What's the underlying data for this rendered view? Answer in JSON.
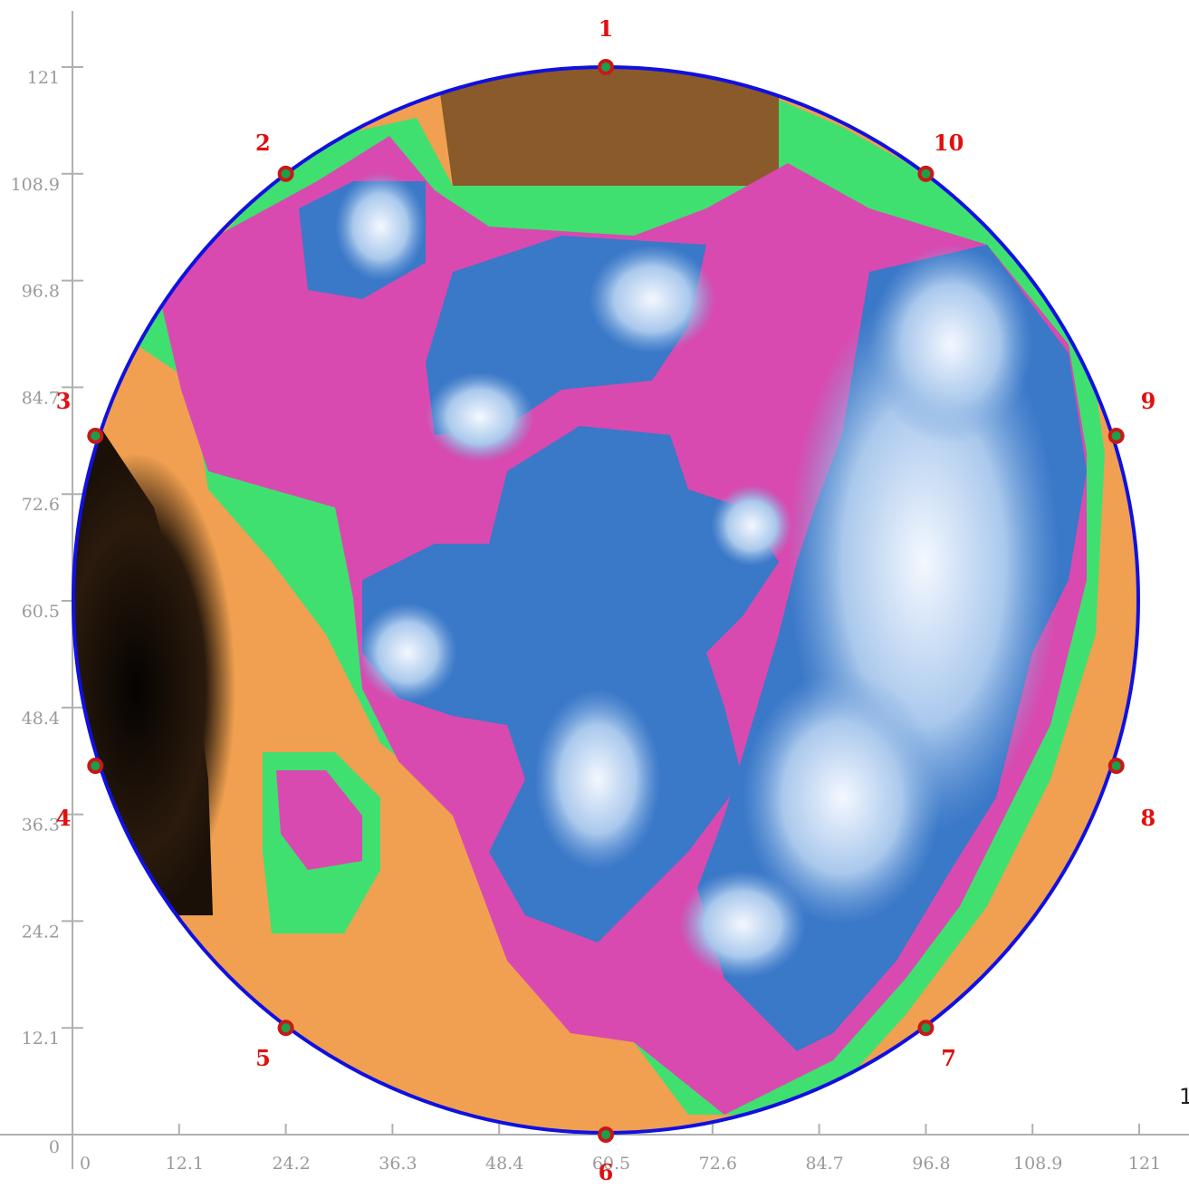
{
  "chart_data": {
    "type": "heatmap",
    "shape": "circle",
    "x_ticks": [
      "0",
      "12.1",
      "24.2",
      "36.3",
      "48.4",
      "60.5",
      "72.6",
      "84.7",
      "96.8",
      "108.9",
      "121"
    ],
    "y_ticks": [
      "0",
      "12.1",
      "24.2",
      "36.3",
      "48.4",
      "60.5",
      "72.6",
      "84.7",
      "96.8",
      "108.9",
      "121"
    ],
    "xlim": [
      0,
      121
    ],
    "ylim": [
      0,
      121
    ],
    "grid": false,
    "boundary_color": "#1010e0",
    "point_label_color": "#e01010",
    "point_color": "#1aa04a",
    "measurement_points": [
      {
        "label": "1",
        "x": 60.5,
        "y": 121
      },
      {
        "label": "2",
        "x": 24.2,
        "y": 108.9
      },
      {
        "label": "3",
        "x": 2.6,
        "y": 79.2
      },
      {
        "label": "4",
        "x": 2.6,
        "y": 41.8
      },
      {
        "label": "5",
        "x": 24.2,
        "y": 12.1
      },
      {
        "label": "6",
        "x": 60.5,
        "y": 0
      },
      {
        "label": "7",
        "x": 96.8,
        "y": 12.1
      },
      {
        "label": "8",
        "x": 118.4,
        "y": 41.8
      },
      {
        "label": "9",
        "x": 118.4,
        "y": 79.2
      },
      {
        "label": "10",
        "x": 96.8,
        "y": 108.9
      }
    ],
    "color_scale": [
      "#1a1008",
      "#7a4a1e",
      "#f0a050",
      "#40e070",
      "#e040b0",
      "#2a6ac0",
      "#e8f0ff"
    ]
  }
}
